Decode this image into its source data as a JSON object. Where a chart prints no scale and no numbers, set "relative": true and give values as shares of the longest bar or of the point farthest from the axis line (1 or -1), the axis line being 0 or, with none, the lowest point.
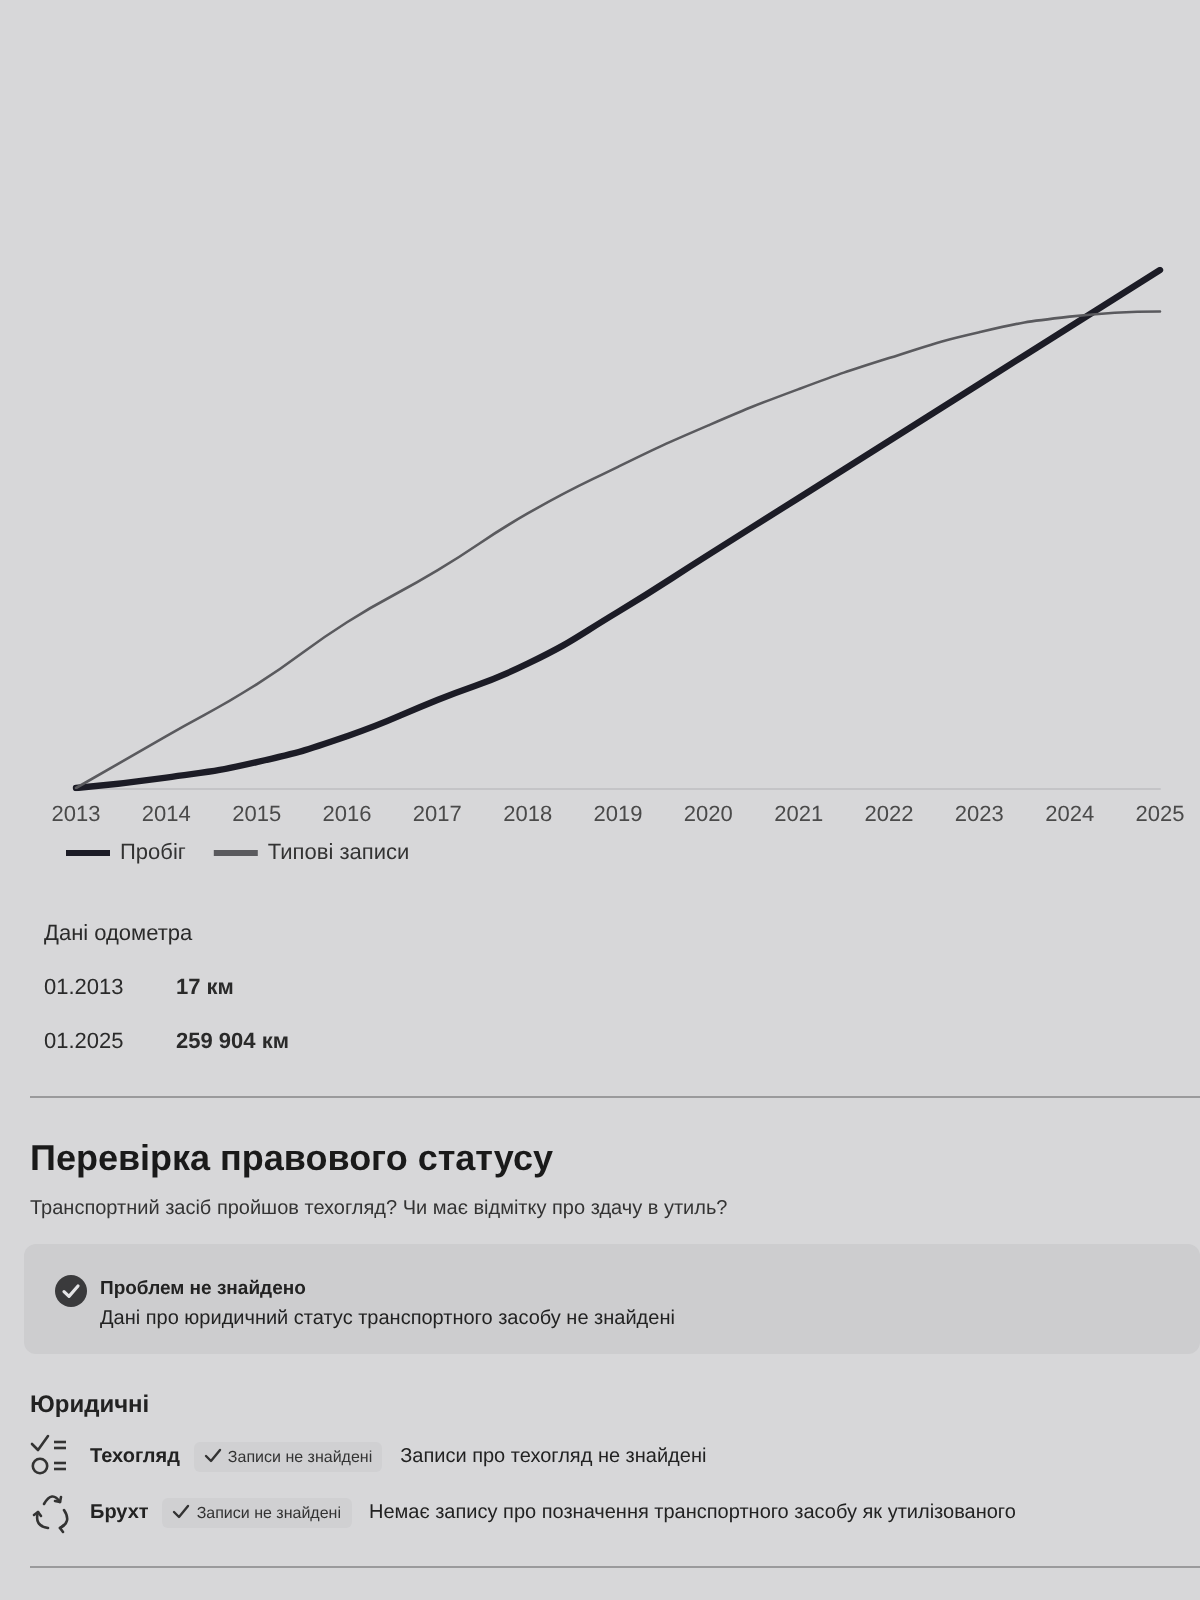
{
  "chart_data": [
    {
      "type": "line",
      "categories": [
        "2013",
        "2014",
        "2015",
        "2016",
        "2017",
        "2018",
        "2019",
        "2020",
        "2021",
        "2022",
        "2023",
        "2024",
        "2025"
      ],
      "relative": true,
      "legend": "bottom left",
      "grid": false,
      "series": [
        {
          "name": "Пробіг",
          "color": "#1c1c26",
          "values": [
            0,
            0.02,
            0.05,
            0.1,
            0.17,
            0.24,
            0.34,
            0.45,
            0.56,
            0.67,
            0.78,
            0.89,
            1
          ]
        },
        {
          "name": "Типові записи",
          "color": "#5a5a5e",
          "values": [
            0,
            0.1,
            0.2,
            0.32,
            0.42,
            0.53,
            0.62,
            0.7,
            0.77,
            0.83,
            0.88,
            0.91,
            0.92
          ]
        }
      ]
    },
    {
      "type": "other",
      "title": "Дані одометра",
      "annotations": [
        "01.2013",
        "17 км",
        "01.2025",
        "259 904 км"
      ]
    },
    {
      "type": "other",
      "title": "Перевірка правового статусу",
      "subtitle": "Транспортний засіб пройшов техогляд? Чи має відмітку про здачу в утиль?",
      "annotations": [
        "Проблем не знайдено",
        "Дані про юридичний статус транспортного засобу не знайдені",
        "Юридичні",
        "Техогляд",
        "Записи не знайдені",
        "Записи про техогляд не знайдені",
        "Брухт",
        "Записи не знайдені",
        "Немає запису про позначення транспортного засобу як утилізованого"
      ]
    }
  ]
}
